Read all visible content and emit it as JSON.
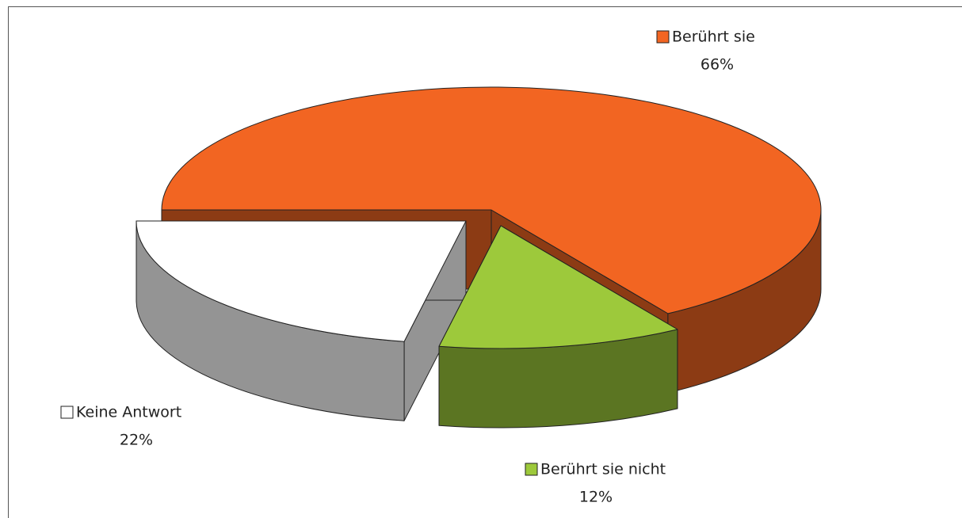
{
  "chart_data": {
    "type": "pie",
    "style": "3d-exploded",
    "categories": [
      "Berührt sie",
      "Berührt sie nicht",
      "Keine Antwort"
    ],
    "values": [
      66,
      12,
      22
    ],
    "value_labels": [
      "66%",
      "12%",
      "22%"
    ],
    "colors": [
      "#f26522",
      "#9dc93b",
      "#ffffff"
    ]
  }
}
